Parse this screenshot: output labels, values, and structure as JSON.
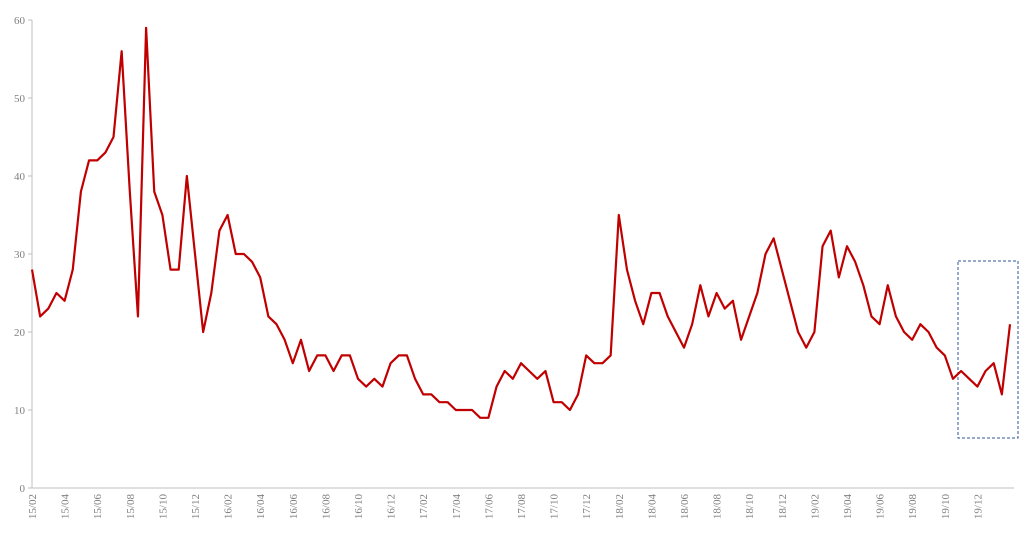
{
  "chart_data": {
    "type": "line",
    "categories": [
      "15/02",
      null,
      null,
      null,
      "15/04",
      null,
      null,
      null,
      "15/06",
      null,
      null,
      null,
      "15/08",
      null,
      null,
      null,
      "15/10",
      null,
      null,
      null,
      "15/12",
      null,
      null,
      null,
      "16/02",
      null,
      null,
      null,
      "16/04",
      null,
      null,
      null,
      "16/06",
      null,
      null,
      null,
      "16/08",
      null,
      null,
      null,
      "16/10",
      null,
      null,
      null,
      "16/12",
      null,
      null,
      null,
      "17/02",
      null,
      null,
      null,
      "17/04",
      null,
      null,
      null,
      "17/06",
      null,
      null,
      null,
      "17/08",
      null,
      null,
      null,
      "17/10",
      null,
      null,
      null,
      "17/12",
      null,
      null,
      null,
      "18/02",
      null,
      null,
      null,
      "18/04",
      null,
      null,
      null,
      "18/06",
      null,
      null,
      null,
      "18/08",
      null,
      null,
      null,
      "18/10",
      null,
      null,
      null,
      "18/12",
      null,
      null,
      null,
      "19/02",
      null,
      null,
      null,
      "19/04",
      null,
      null,
      null,
      "19/06",
      null,
      null,
      null,
      "19/08",
      null,
      null,
      null,
      "19/10",
      null,
      null,
      null,
      "19/12",
      null,
      null,
      null,
      null
    ],
    "values": [
      28,
      22,
      23,
      25,
      24,
      28,
      38,
      42,
      42,
      43,
      45,
      56,
      38,
      22,
      59,
      38,
      35,
      28,
      28,
      40,
      30,
      20,
      25,
      33,
      35,
      30,
      30,
      29,
      27,
      22,
      21,
      19,
      16,
      19,
      15,
      17,
      17,
      15,
      17,
      17,
      14,
      13,
      14,
      13,
      16,
      17,
      17,
      14,
      12,
      12,
      11,
      11,
      10,
      10,
      10,
      9,
      9,
      13,
      15,
      14,
      16,
      15,
      14,
      15,
      11,
      11,
      10,
      12,
      17,
      16,
      16,
      17,
      35,
      28,
      24,
      21,
      25,
      25,
      22,
      20,
      18,
      21,
      26,
      22,
      25,
      23,
      24,
      19,
      22,
      25,
      30,
      32,
      28,
      24,
      20,
      18,
      20,
      31,
      33,
      27,
      31,
      29,
      26,
      22,
      21,
      26,
      22,
      20,
      19,
      21,
      20,
      18,
      17,
      14,
      15,
      14,
      13,
      15,
      16,
      12,
      21
    ],
    "color": "#c00000",
    "ylim": [
      0,
      60
    ],
    "yticks": [
      0,
      10,
      20,
      30,
      40,
      50,
      60
    ]
  }
}
